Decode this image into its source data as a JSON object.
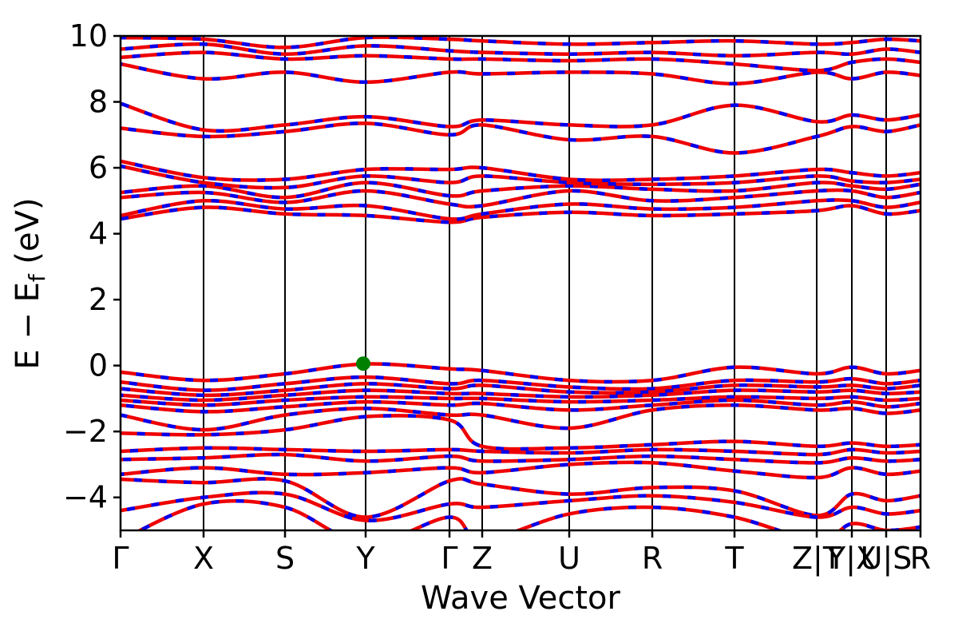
{
  "figure": {
    "xlabel": "Wave Vector",
    "ylabel_main": "E − E",
    "ylabel_sub": "f",
    "ylabel_unit": " (eV)"
  },
  "chart_data": {
    "type": "line",
    "title": "",
    "xlabel": "Wave Vector",
    "ylabel": "E − E_f (eV)",
    "ylim": [
      -5,
      10
    ],
    "yticks": [
      10,
      8,
      6,
      4,
      2,
      0,
      -2,
      -4
    ],
    "grid": "vertical-lines-at-kpoints",
    "legend": "none",
    "x_axis": {
      "kpoint_labels": [
        "Γ",
        "X",
        "S",
        "Y",
        "Γ",
        "Z",
        "U",
        "R",
        "T",
        "Z|T",
        "Y|X",
        "U|S",
        "R"
      ],
      "kpoint_positions": [
        0.0,
        0.1038,
        0.2056,
        0.3064,
        0.4112,
        0.4521,
        0.5609,
        0.6647,
        0.7675,
        0.8703,
        0.9142,
        0.9571,
        1.0
      ]
    },
    "series_styles": [
      {
        "name": "calculation-1",
        "color": "#ee0000",
        "line": "solid",
        "width": 4.5
      },
      {
        "name": "calculation-2",
        "color": "#0000ee",
        "line": "dashed",
        "width": 4.5,
        "dash": [
          10,
          21
        ]
      }
    ],
    "vbm_marker": {
      "k": 0.3034,
      "energy": 0.06,
      "color": "#008000",
      "radius": 9
    },
    "bands": [
      [
        4.45,
        4.8,
        4.6,
        4.55,
        4.35,
        4.5,
        4.65,
        4.55,
        4.6,
        4.7,
        4.85,
        4.6,
        4.7
      ],
      [
        4.55,
        5.0,
        4.75,
        4.85,
        4.45,
        4.6,
        4.9,
        4.75,
        4.8,
        5.0,
        5.0,
        4.8,
        4.95
      ],
      [
        5.1,
        5.25,
        4.95,
        5.3,
        4.9,
        4.85,
        5.3,
        5.0,
        5.1,
        5.3,
        5.3,
        5.1,
        5.25
      ],
      [
        5.25,
        5.45,
        5.1,
        5.55,
        5.15,
        5.3,
        5.45,
        5.35,
        5.3,
        5.55,
        5.45,
        5.35,
        5.5
      ],
      [
        6.05,
        5.55,
        5.4,
        5.75,
        5.55,
        5.75,
        5.55,
        5.5,
        5.55,
        5.75,
        5.6,
        5.55,
        5.65
      ],
      [
        6.2,
        5.7,
        5.65,
        5.95,
        5.95,
        6.0,
        5.65,
        5.65,
        5.75,
        5.95,
        5.85,
        5.75,
        5.85
      ],
      [
        7.2,
        6.95,
        7.1,
        7.35,
        7.0,
        7.3,
        6.85,
        6.95,
        6.45,
        6.95,
        7.25,
        7.1,
        7.3
      ],
      [
        7.95,
        7.15,
        7.3,
        7.55,
        7.25,
        7.45,
        7.3,
        7.3,
        7.9,
        7.4,
        7.6,
        7.45,
        7.6
      ],
      [
        9.15,
        8.7,
        8.9,
        8.6,
        8.9,
        8.85,
        8.9,
        8.85,
        8.55,
        8.9,
        8.7,
        8.9,
        8.8
      ],
      [
        9.35,
        9.5,
        9.3,
        9.4,
        9.3,
        9.3,
        9.25,
        9.3,
        9.15,
        8.95,
        9.2,
        9.3,
        9.2
      ],
      [
        9.6,
        9.75,
        9.45,
        9.7,
        9.55,
        9.5,
        9.45,
        9.5,
        9.4,
        9.5,
        9.45,
        9.6,
        9.5
      ],
      [
        9.95,
        9.9,
        9.65,
        9.95,
        9.9,
        9.85,
        9.75,
        9.8,
        9.85,
        9.75,
        9.8,
        9.9,
        9.85
      ],
      [
        -0.2,
        -0.45,
        -0.25,
        0.05,
        -0.1,
        -0.15,
        -0.45,
        -0.45,
        -0.05,
        -0.25,
        -0.05,
        -0.25,
        -0.15
      ],
      [
        -0.5,
        -0.75,
        -0.55,
        -0.35,
        -0.55,
        -0.45,
        -0.65,
        -0.7,
        -0.45,
        -0.5,
        -0.4,
        -0.55,
        -0.45
      ],
      [
        -0.7,
        -0.9,
        -0.75,
        -0.55,
        -0.7,
        -0.6,
        -0.8,
        -0.8,
        -0.6,
        -0.65,
        -0.6,
        -0.7,
        -0.6
      ],
      [
        -0.9,
        -1.05,
        -0.9,
        -0.75,
        -0.85,
        -0.85,
        -0.95,
        -0.9,
        -0.75,
        -0.8,
        -0.75,
        -0.85,
        -0.8
      ],
      [
        -1.05,
        -1.2,
        -1.05,
        -0.95,
        -1.0,
        -1.0,
        -1.1,
        -1.05,
        -0.95,
        -1.0,
        -0.95,
        -1.05,
        -1.0
      ],
      [
        -1.2,
        -1.4,
        -1.25,
        -1.1,
        -1.2,
        -1.15,
        -1.35,
        -1.2,
        -1.05,
        -1.2,
        -1.1,
        -1.25,
        -1.15
      ],
      [
        -1.5,
        -1.95,
        -1.5,
        -1.3,
        -1.5,
        -1.5,
        -1.9,
        -1.35,
        -1.2,
        -1.35,
        -1.3,
        -1.45,
        -1.35
      ],
      [
        -2.05,
        -2.1,
        -1.95,
        -1.55,
        -1.65,
        -2.45,
        -2.5,
        -2.4,
        -2.3,
        -2.45,
        -2.35,
        -2.45,
        -2.4
      ],
      [
        -2.6,
        -2.5,
        -2.55,
        -2.6,
        -2.55,
        -2.6,
        -2.65,
        -2.55,
        -2.6,
        -2.7,
        -2.55,
        -2.65,
        -2.6
      ],
      [
        -2.85,
        -2.8,
        -2.7,
        -2.9,
        -2.75,
        -2.9,
        -2.85,
        -2.75,
        -2.85,
        -2.95,
        -2.8,
        -2.9,
        -2.85
      ],
      [
        -3.3,
        -3.1,
        -3.3,
        -3.25,
        -3.1,
        -3.25,
        -3.0,
        -2.95,
        -3.2,
        -3.4,
        -3.1,
        -3.3,
        -3.2
      ],
      [
        -3.45,
        -3.55,
        -3.5,
        -4.6,
        -3.5,
        -3.6,
        -3.9,
        -3.7,
        -3.8,
        -4.55,
        -3.9,
        -4.1,
        -3.95
      ],
      [
        -4.4,
        -4.0,
        -3.9,
        -4.7,
        -4.2,
        -4.3,
        -4.1,
        -3.95,
        -4.15,
        -4.6,
        -4.3,
        -4.5,
        -4.4
      ],
      [
        -5.3,
        -4.2,
        -4.3,
        -5.4,
        -4.6,
        -5.3,
        -4.5,
        -4.3,
        -4.6,
        -5.3,
        -4.8,
        -5.0,
        -4.9
      ]
    ]
  }
}
